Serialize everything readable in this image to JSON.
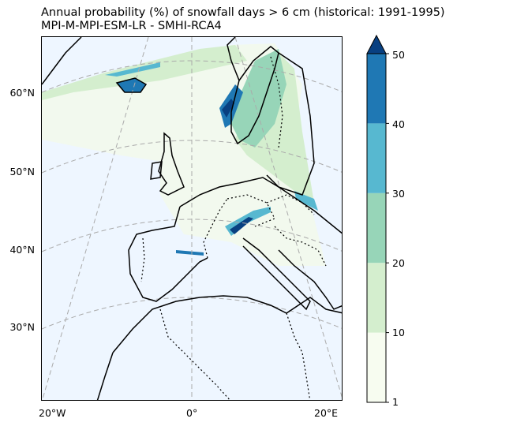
{
  "title": {
    "line1": "Annual probability (%) of snowfall days > 6 cm (historical: 1991-1995)",
    "line2": "MPI-M-MPI-ESM-LR - SMHI-RCA4"
  },
  "map": {
    "projection": "lambert-conformal",
    "lat_labels": [
      "60°N",
      "50°N",
      "40°N",
      "30°N"
    ],
    "lon_labels": [
      "20°W",
      "0°",
      "20°E"
    ],
    "ocean_color": "#eef6ff",
    "coast_color": "#000000",
    "border_style": "dotted",
    "gridline_style": "dashed-gray"
  },
  "colorbar": {
    "ticks": [
      "1",
      "10",
      "20",
      "30",
      "40",
      "50"
    ],
    "extend": "max",
    "colors": [
      "#f7fcf0",
      "#d4eece",
      "#97d5b8",
      "#57b8d0",
      "#1f78b4",
      "#084081"
    ]
  }
}
